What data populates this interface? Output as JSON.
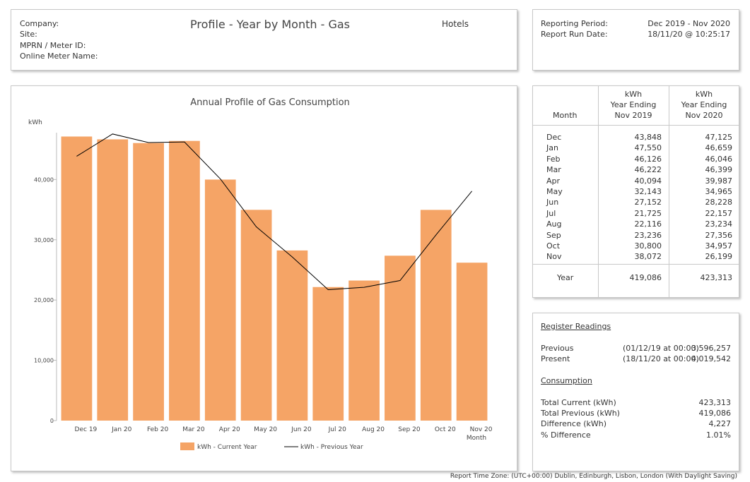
{
  "header": {
    "company_label": "Company:",
    "site_label": "Site:",
    "mprn_label": "MPRN / Meter ID:",
    "online_meter_label": "Online Meter Name:",
    "title": "Profile - Year by Month - Gas",
    "category": "Hotels"
  },
  "period": {
    "reporting_period_label": "Reporting Period:",
    "reporting_period_value": "Dec 2019  - Nov 2020",
    "run_date_label": "Report Run Date:",
    "run_date_value": "18/11/20 @ 10:25:17"
  },
  "table": {
    "col_month": "Month",
    "col_prev": [
      "kWh",
      "Year Ending",
      "Nov 2019"
    ],
    "col_curr": [
      "kWh",
      "Year Ending",
      "Nov 2020"
    ],
    "rows": [
      {
        "month": "Dec",
        "prev": "43,848",
        "curr": "47,125"
      },
      {
        "month": "Jan",
        "prev": "47,550",
        "curr": "46,659"
      },
      {
        "month": "Feb",
        "prev": "46,126",
        "curr": "46,046"
      },
      {
        "month": "Mar",
        "prev": "46,222",
        "curr": "46,399"
      },
      {
        "month": "Apr",
        "prev": "40,094",
        "curr": "39,987"
      },
      {
        "month": "May",
        "prev": "32,143",
        "curr": "34,965"
      },
      {
        "month": "Jun",
        "prev": "27,152",
        "curr": "28,228"
      },
      {
        "month": "Jul",
        "prev": "21,725",
        "curr": "22,157"
      },
      {
        "month": "Aug",
        "prev": "22,116",
        "curr": "23,234"
      },
      {
        "month": "Sep",
        "prev": "23,236",
        "curr": "27,356"
      },
      {
        "month": "Oct",
        "prev": "30,800",
        "curr": "34,957"
      },
      {
        "month": "Nov",
        "prev": "38,072",
        "curr": "26,199"
      }
    ],
    "total_label": "Year",
    "total_prev": "419,086",
    "total_curr": "423,313"
  },
  "register": {
    "heading": "Register Readings",
    "previous_label": "Previous",
    "previous_when": "(01/12/19  at 00:00)",
    "previous_value": "3,596,257",
    "present_label": "Present",
    "present_when": "(18/11/20  at 00:00)",
    "present_value": "4,019,542",
    "consumption_heading": "Consumption",
    "total_current_label": "Total Current (kWh)",
    "total_current_value": "423,313",
    "total_previous_label": "Total Previous (kWh)",
    "total_previous_value": "419,086",
    "difference_label": "Difference (kWh)",
    "difference_value": "4,227",
    "pct_difference_label": "% Difference",
    "pct_difference_value": "1.01%"
  },
  "footer": {
    "timezone": "Report Time Zone: (UTC+00:00) Dublin, Edinburgh, Lisbon, London (With Daylight Saving)"
  },
  "chart_data": {
    "type": "bar",
    "title": "Annual Profile of Gas Consumption",
    "ylabel": "kWh",
    "xlabel": "Month",
    "categories": [
      "Dec 19",
      "Jan 20",
      "Feb 20",
      "Mar 20",
      "Apr 20",
      "May 20",
      "Jun 20",
      "Jul 20",
      "Aug 20",
      "Sep 20",
      "Oct 20",
      "Nov 20"
    ],
    "ylim": [
      0,
      48000
    ],
    "yticks": [
      0,
      10000,
      20000,
      30000,
      40000
    ],
    "ytick_labels": [
      "0",
      "10,000",
      "20,000",
      "30,000",
      "40,000"
    ],
    "series": [
      {
        "name": "kWh - Current Year",
        "kind": "bar",
        "color": "#f5a466",
        "values": [
          47125,
          46659,
          46046,
          46399,
          39987,
          34965,
          28228,
          22157,
          23234,
          27356,
          34957,
          26199
        ]
      },
      {
        "name": "kWh - Previous Year",
        "kind": "line",
        "color": "#000000",
        "values": [
          43848,
          47550,
          46126,
          46222,
          40094,
          32143,
          27152,
          21725,
          22116,
          23236,
          30800,
          38072
        ]
      }
    ],
    "grid": false,
    "legend_position": "bottom"
  }
}
